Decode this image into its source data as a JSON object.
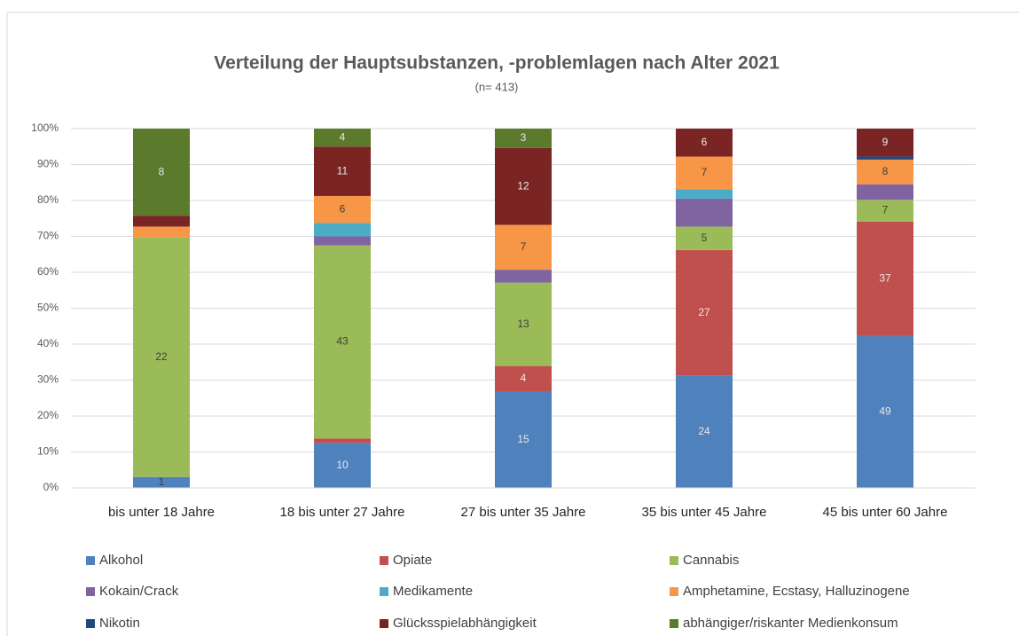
{
  "chart_data": {
    "type": "bar",
    "stacked": "percent",
    "title": "Verteilung der Hauptsubstanzen, -problemlagen nach Alter 2021",
    "subtitle": "(n= 413)",
    "categories": [
      "bis unter 18 Jahre",
      "18 bis unter 27 Jahre",
      "27 bis unter 35 Jahre",
      "35 bis unter 45 Jahre",
      "45 bis unter 60 Jahre"
    ],
    "ylim": [
      0,
      100
    ],
    "yticks": [
      {
        "value": 0,
        "label": "0%"
      },
      {
        "value": 10,
        "label": "10%"
      },
      {
        "value": 20,
        "label": "20%"
      },
      {
        "value": 30,
        "label": "30%"
      },
      {
        "value": 40,
        "label": "40%"
      },
      {
        "value": 50,
        "label": "50%"
      },
      {
        "value": 60,
        "label": "60%"
      },
      {
        "value": 70,
        "label": "70%"
      },
      {
        "value": 80,
        "label": "80%"
      },
      {
        "value": 90,
        "label": "90%"
      },
      {
        "value": 100,
        "label": "100%"
      }
    ],
    "grid": true,
    "legend": "bottom",
    "series": [
      {
        "name": "Alkohol",
        "color": "#4f81bd",
        "values": [
          1,
          10,
          15,
          24,
          49
        ],
        "value_labels": [
          "1",
          "10",
          "15",
          "24",
          "49"
        ]
      },
      {
        "name": "Opiate",
        "color": "#c0504d",
        "values": [
          0,
          1,
          4,
          27,
          37
        ],
        "value_labels": [
          null,
          null,
          "4",
          "27",
          "37"
        ]
      },
      {
        "name": "Cannabis",
        "color": "#9bbb59",
        "values": [
          22,
          43,
          13,
          5,
          7
        ],
        "value_labels": [
          "22",
          "43",
          "13",
          "5",
          "7"
        ]
      },
      {
        "name": "Kokain/Crack",
        "color": "#8064a2",
        "values": [
          0,
          2,
          2,
          6,
          5
        ],
        "value_labels": [
          null,
          null,
          null,
          null,
          null
        ]
      },
      {
        "name": "Medikamente",
        "color": "#4bacc6",
        "values": [
          0,
          3,
          0,
          2,
          0
        ],
        "value_labels": [
          null,
          null,
          null,
          null,
          null
        ]
      },
      {
        "name": "Amphetamine, Ecstasy, Halluzinogene",
        "color": "#f79646",
        "values": [
          1,
          6,
          7,
          7,
          8
        ],
        "value_labels": [
          null,
          "6",
          "7",
          "7",
          "8"
        ]
      },
      {
        "name": "Nikotin",
        "color": "#1f497d",
        "values": [
          0,
          0,
          0,
          0,
          1
        ],
        "value_labels": [
          null,
          null,
          null,
          null,
          null
        ]
      },
      {
        "name": "Glücksspielabhängigkeit",
        "color": "#7b2424",
        "values": [
          1,
          11,
          12,
          6,
          9
        ],
        "value_labels": [
          null,
          "11",
          "12",
          "6",
          "9"
        ]
      },
      {
        "name": "abhängiger/riskanter Medienkonsum",
        "color": "#5b7a2c",
        "values": [
          8,
          4,
          3,
          0,
          0
        ],
        "value_labels": [
          "8",
          "4",
          "3",
          null,
          null
        ]
      }
    ]
  }
}
